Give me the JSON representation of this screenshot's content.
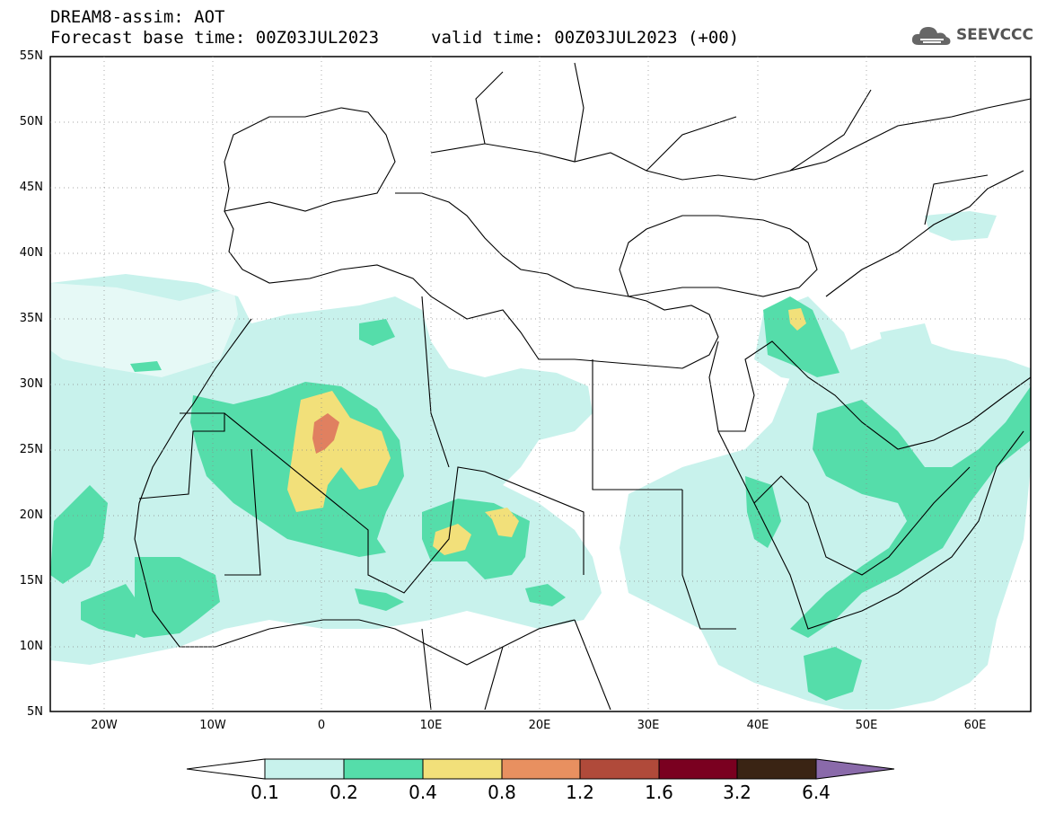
{
  "header": {
    "line1": "DREAM8-assim: AOT",
    "base_time": "Forecast base time: 00Z03JUL2023",
    "valid_time": "valid time: 00Z03JUL2023 (+00)",
    "logo_text": "SEEVCCC",
    "logo_icon": "cloud-icon"
  },
  "axes": {
    "lat_labels": [
      "55N",
      "50N",
      "45N",
      "40N",
      "35N",
      "30N",
      "25N",
      "20N",
      "15N",
      "10N",
      "5N"
    ],
    "lon_labels": [
      "20W",
      "10W",
      "0",
      "10E",
      "20E",
      "30E",
      "40E",
      "50E",
      "60E"
    ],
    "lat_range": [
      5,
      55
    ],
    "lon_range": [
      -25,
      65
    ]
  },
  "colorbar": {
    "levels": [
      "0.1",
      "0.2",
      "0.4",
      "0.8",
      "1.2",
      "1.6",
      "3.2",
      "6.4"
    ],
    "colors": [
      "#ffffff",
      "#c8f2ec",
      "#55ddaa",
      "#f2e07a",
      "#e89060",
      "#b04a3a",
      "#7a0020",
      "#3a2414",
      "#8a6aaa"
    ]
  },
  "map": {
    "variable": "AOT",
    "frame_color": "#000000",
    "border_color": "#000000"
  }
}
